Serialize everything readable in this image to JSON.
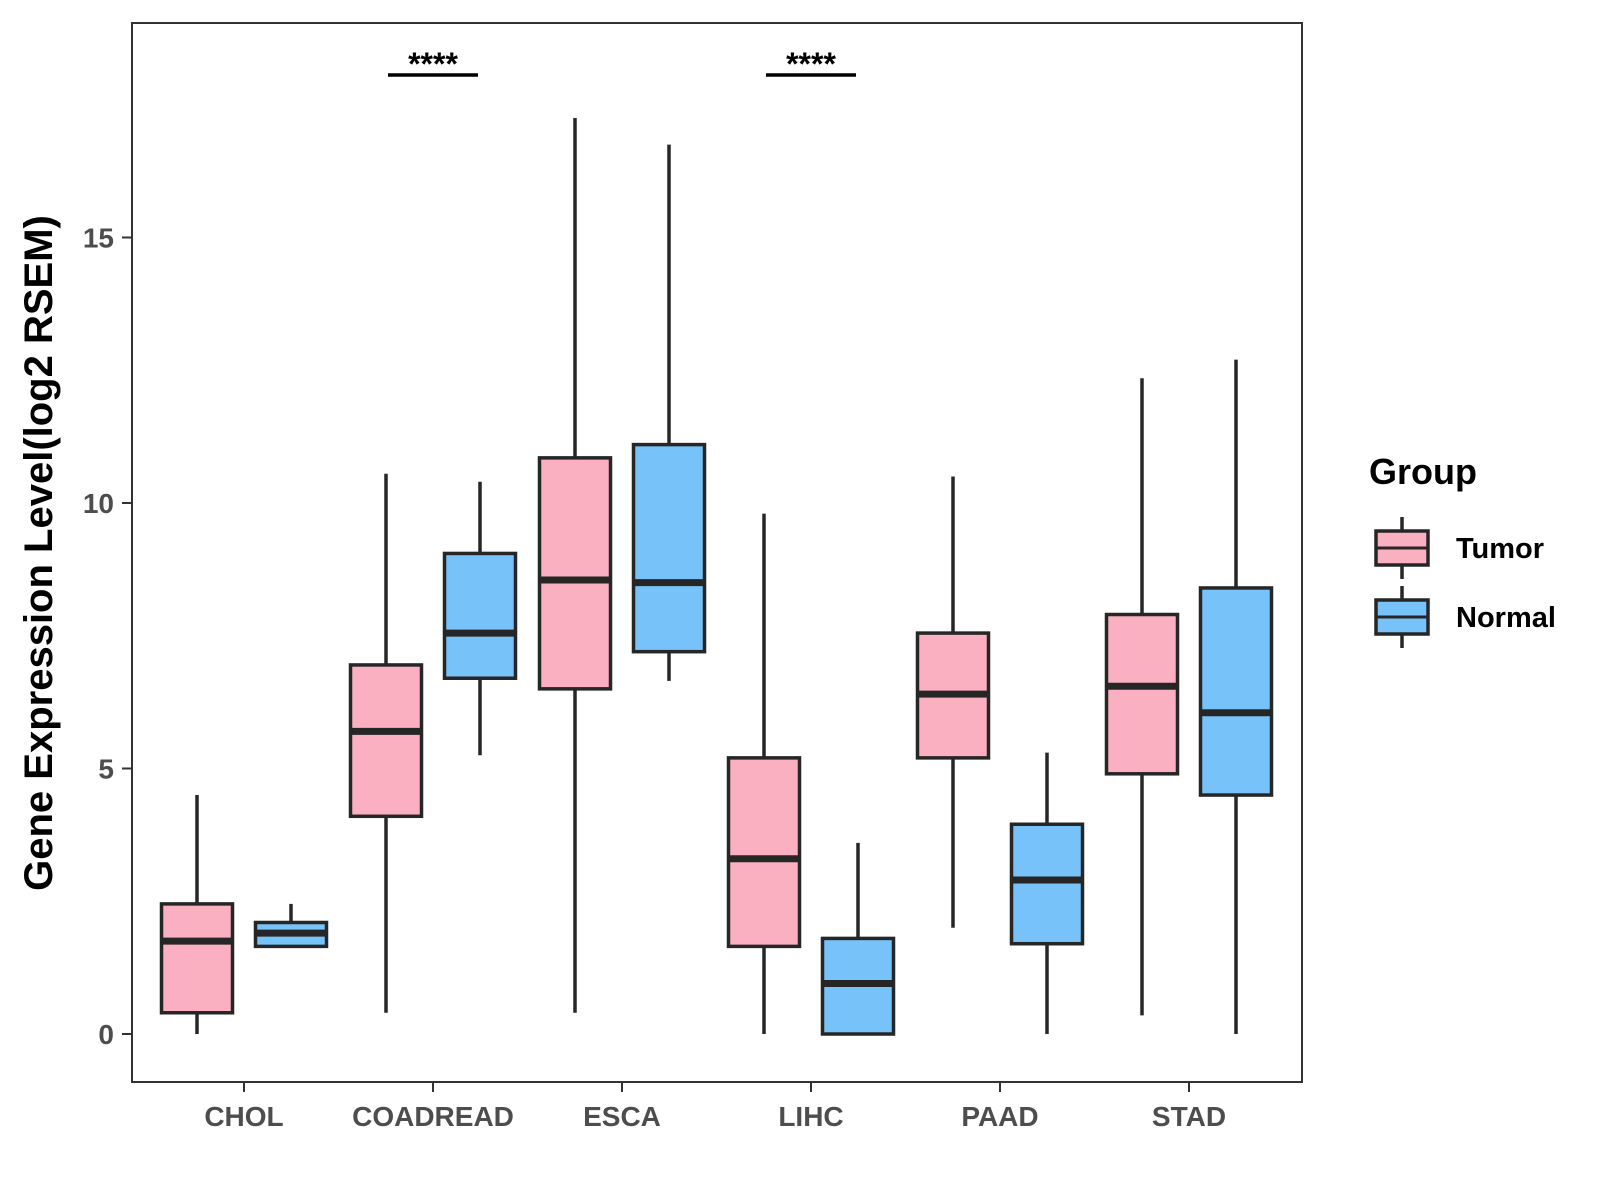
{
  "chart_data": {
    "type": "box",
    "title": "",
    "xlabel": "",
    "ylabel": "Gene Expression Level(log2 RSEM)",
    "ylim": [
      -0.9,
      19.0
    ],
    "yticks": [
      0,
      5,
      10,
      15
    ],
    "grid": false,
    "categories": [
      "CHOL",
      "COADREAD",
      "ESCA",
      "LIHC",
      "PAAD",
      "STAD"
    ],
    "legend": {
      "title": "Group",
      "position": "right",
      "entries": [
        "Tumor",
        "Normal"
      ]
    },
    "colors": {
      "Tumor": "#FBB0C2",
      "Normal": "#77C2F8",
      "outline": "#262626"
    },
    "series": [
      {
        "name": "Tumor",
        "boxes": [
          {
            "category": "CHOL",
            "min": 0.0,
            "q1": 0.4,
            "median": 1.75,
            "q3": 2.45,
            "max": 4.5
          },
          {
            "category": "COADREAD",
            "min": 0.4,
            "q1": 4.1,
            "median": 5.7,
            "q3": 6.95,
            "max": 10.55
          },
          {
            "category": "ESCA",
            "min": 0.4,
            "q1": 6.5,
            "median": 8.55,
            "q3": 10.85,
            "max": 17.25
          },
          {
            "category": "LIHC",
            "min": 0.0,
            "q1": 1.65,
            "median": 3.3,
            "q3": 5.2,
            "max": 9.8
          },
          {
            "category": "PAAD",
            "min": 2.0,
            "q1": 5.2,
            "median": 6.4,
            "q3": 7.55,
            "max": 10.5
          },
          {
            "category": "STAD",
            "min": 0.35,
            "q1": 4.9,
            "median": 6.55,
            "q3": 7.9,
            "max": 12.35
          }
        ]
      },
      {
        "name": "Normal",
        "boxes": [
          {
            "category": "CHOL",
            "min": 1.65,
            "q1": 1.65,
            "median": 1.9,
            "q3": 2.1,
            "max": 2.45
          },
          {
            "category": "COADREAD",
            "min": 5.25,
            "q1": 6.7,
            "median": 7.55,
            "q3": 9.05,
            "max": 10.4
          },
          {
            "category": "ESCA",
            "min": 6.65,
            "q1": 7.2,
            "median": 8.5,
            "q3": 11.1,
            "max": 16.75
          },
          {
            "category": "LIHC",
            "min": 0.0,
            "q1": 0.0,
            "median": 0.95,
            "q3": 1.8,
            "max": 3.6
          },
          {
            "category": "PAAD",
            "min": 0.0,
            "q1": 1.7,
            "median": 2.9,
            "q3": 3.95,
            "max": 5.3
          },
          {
            "category": "STAD",
            "min": 0.0,
            "q1": 4.5,
            "median": 6.05,
            "q3": 8.4,
            "max": 12.7
          }
        ]
      }
    ],
    "annotations": [
      {
        "category": "COADREAD",
        "label": "****"
      },
      {
        "category": "LIHC",
        "label": "****"
      }
    ]
  }
}
